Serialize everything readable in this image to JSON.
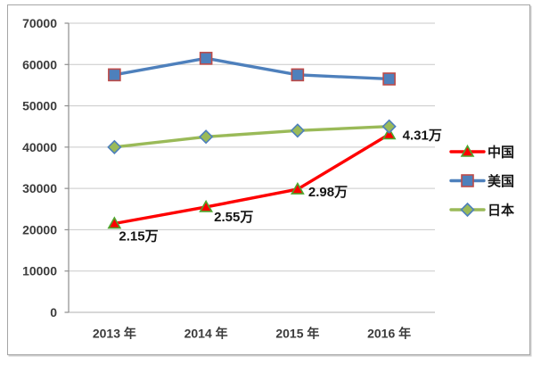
{
  "chart_data": {
    "type": "line",
    "title": "",
    "categories": [
      "2013 年",
      "2014 年",
      "2015 年",
      "2016 年"
    ],
    "series": [
      {
        "name": "中国",
        "values": [
          21500,
          25500,
          29800,
          43100
        ],
        "point_labels": [
          "2.15万",
          "2.55万",
          "2.98万",
          "4.31万"
        ],
        "line_color": "#FE0000",
        "marker_shape": "triangle",
        "marker_fill": "#FE0000",
        "marker_border": "#4EA72E"
      },
      {
        "name": "美国",
        "values": [
          57500,
          61500,
          57500,
          56500
        ],
        "point_labels": [],
        "line_color": "#4E80BC",
        "marker_shape": "square",
        "marker_fill": "#4E80BC",
        "marker_border": "#BE4B48"
      },
      {
        "name": "日本",
        "values": [
          40000,
          42500,
          44000,
          45000
        ],
        "point_labels": [],
        "line_color": "#9ABA58",
        "marker_shape": "diamond",
        "marker_fill": "#9ABA58",
        "marker_border": "#4E80BC"
      }
    ],
    "y_axis": {
      "min": 0,
      "max": 70000,
      "step": 10000,
      "tick_labels": [
        "0",
        "10000",
        "20000",
        "30000",
        "40000",
        "50000",
        "60000",
        "70000"
      ]
    },
    "x_axis": {
      "tick_labels": [
        "2013 年",
        "2014 年",
        "2015 年",
        "2016 年"
      ]
    },
    "legend": {
      "position": "right",
      "entries": [
        "中国",
        "美国",
        "日本"
      ]
    },
    "grid": true,
    "colors": {
      "gridline": "#C9C9C9",
      "y_axis_line": "#8E8E8E",
      "x_axis_line": "#BFBFBF",
      "axis_text": "#3B3B3B",
      "label_text": "#141414",
      "frame_border": "#A6A6A6",
      "background": "#FFFFFF"
    }
  }
}
